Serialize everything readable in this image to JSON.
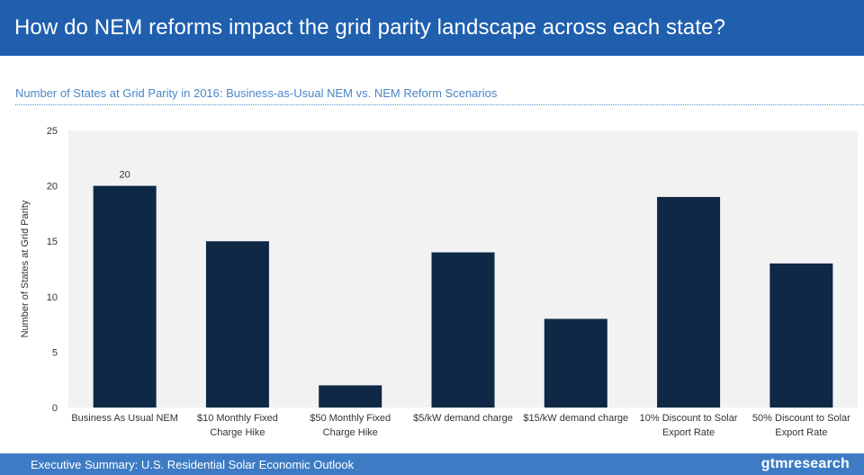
{
  "header": {
    "title": "How do NEM reforms impact the grid parity landscape across each state?"
  },
  "subtitle": "Number of States at Grid Parity in 2016: Business-as-Usual NEM vs. NEM Reform Scenarios",
  "footer": {
    "text": "Executive Summary: U.S. Residential Solar Economic Outlook",
    "logo": "gtmresearch"
  },
  "colors": {
    "header": "#1f5fae",
    "footer": "#3d7cc4",
    "bar": "#0f2846",
    "plot_bg": "#f2f2f2"
  },
  "chart_data": {
    "type": "bar",
    "categories": [
      [
        "Business As Usual NEM"
      ],
      [
        "$10 Monthly Fixed",
        "Charge Hike"
      ],
      [
        "$50 Monthly Fixed",
        "Charge Hike"
      ],
      [
        "$5/kW demand charge"
      ],
      [
        "$15/kW demand charge"
      ],
      [
        "10% Discount to Solar",
        "Export Rate"
      ],
      [
        "50% Discount to Solar",
        "Export Rate"
      ]
    ],
    "values": [
      20,
      15,
      2,
      14,
      8,
      19,
      13
    ],
    "data_labels": [
      "20",
      "",
      "",
      "",
      "",
      "",
      ""
    ],
    "ylabel": "Number of States at Grid Parity",
    "ylim": [
      0,
      25
    ],
    "yticks": [
      0,
      5,
      10,
      15,
      20,
      25
    ],
    "grid": false
  }
}
